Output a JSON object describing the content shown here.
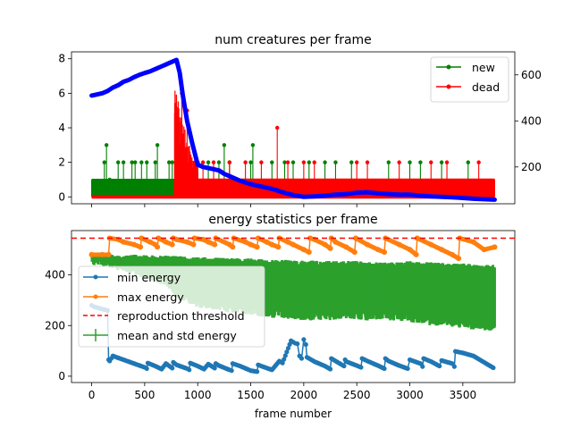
{
  "chart_data": [
    {
      "type": "line",
      "title": "num creatures per frame",
      "xlabel": "",
      "ylabel": "",
      "xlim": [
        -190,
        3990
      ],
      "ylim": [
        -0.4,
        8.4
      ],
      "y2lim": [
        40,
        700
      ],
      "yticks": [
        0,
        2,
        4,
        6,
        8
      ],
      "y2ticks": [
        200,
        400,
        600
      ],
      "xticks": [
        0,
        500,
        1000,
        1500,
        2000,
        2500,
        3000,
        3500
      ],
      "grid": false,
      "legend": "top-right",
      "series": [
        {
          "name": "new",
          "color": "#008000",
          "marker": "dot",
          "stem_base": 0,
          "background_level": 1,
          "background_ranges": [
            [
              0,
              820
            ],
            [
              900,
              3800
            ]
          ],
          "spikes": [
            {
              "x": 140,
              "y": 3
            },
            {
              "x": 120,
              "y": 2
            },
            {
              "x": 170,
              "y": 1
            },
            {
              "x": 250,
              "y": 2
            },
            {
              "x": 300,
              "y": 2
            },
            {
              "x": 380,
              "y": 2
            },
            {
              "x": 410,
              "y": 2
            },
            {
              "x": 470,
              "y": 2
            },
            {
              "x": 520,
              "y": 2
            },
            {
              "x": 600,
              "y": 2
            },
            {
              "x": 620,
              "y": 3
            },
            {
              "x": 730,
              "y": 2
            },
            {
              "x": 760,
              "y": 2
            },
            {
              "x": 1000,
              "y": 2
            },
            {
              "x": 1100,
              "y": 2
            },
            {
              "x": 1200,
              "y": 2
            },
            {
              "x": 1250,
              "y": 3
            },
            {
              "x": 1300,
              "y": 2
            },
            {
              "x": 1500,
              "y": 2
            },
            {
              "x": 1520,
              "y": 3
            },
            {
              "x": 1700,
              "y": 2
            },
            {
              "x": 1820,
              "y": 2
            },
            {
              "x": 1900,
              "y": 2
            },
            {
              "x": 2050,
              "y": 2
            },
            {
              "x": 2200,
              "y": 2
            },
            {
              "x": 2300,
              "y": 2
            },
            {
              "x": 2450,
              "y": 2
            },
            {
              "x": 2800,
              "y": 2
            },
            {
              "x": 3000,
              "y": 2
            },
            {
              "x": 3100,
              "y": 2
            },
            {
              "x": 3300,
              "y": 2
            },
            {
              "x": 3550,
              "y": 2
            }
          ]
        },
        {
          "name": "dead",
          "color": "#ff0000",
          "marker": "dot",
          "stem_base": 0,
          "background_level": 1,
          "background_ranges": [
            [
              800,
              3800
            ]
          ],
          "burst": {
            "x_start": 780,
            "x_end": 1000,
            "peak": 6.5
          },
          "spikes": [
            {
              "x": 850,
              "y": 6
            },
            {
              "x": 900,
              "y": 5
            },
            {
              "x": 1000,
              "y": 2
            },
            {
              "x": 1050,
              "y": 2
            },
            {
              "x": 1150,
              "y": 2
            },
            {
              "x": 1300,
              "y": 2
            },
            {
              "x": 1450,
              "y": 2
            },
            {
              "x": 1600,
              "y": 2
            },
            {
              "x": 1750,
              "y": 4
            },
            {
              "x": 1850,
              "y": 2
            },
            {
              "x": 2000,
              "y": 2
            },
            {
              "x": 2100,
              "y": 2
            },
            {
              "x": 2500,
              "y": 2
            },
            {
              "x": 2600,
              "y": 2
            },
            {
              "x": 2900,
              "y": 2
            },
            {
              "x": 3200,
              "y": 2
            },
            {
              "x": 3350,
              "y": 2
            },
            {
              "x": 3650,
              "y": 2
            }
          ]
        },
        {
          "name": "",
          "axis": "right",
          "color": "#0000ff",
          "x": [
            0,
            50,
            100,
            150,
            200,
            250,
            300,
            350,
            400,
            450,
            500,
            550,
            600,
            650,
            700,
            750,
            800,
            830,
            860,
            900,
            950,
            1000,
            1050,
            1100,
            1150,
            1200,
            1250,
            1300,
            1350,
            1400,
            1500,
            1600,
            1700,
            1800,
            1900,
            2000,
            2100,
            2200,
            2300,
            2400,
            2500,
            2600,
            2700,
            2800,
            2900,
            3000,
            3100,
            3200,
            3300,
            3400,
            3500,
            3600,
            3700,
            3800
          ],
          "y": [
            510,
            515,
            520,
            530,
            545,
            555,
            570,
            578,
            590,
            600,
            608,
            615,
            625,
            635,
            645,
            655,
            665,
            610,
            510,
            400,
            300,
            210,
            200,
            195,
            190,
            185,
            170,
            160,
            150,
            140,
            125,
            115,
            105,
            90,
            78,
            70,
            72,
            75,
            80,
            82,
            88,
            90,
            85,
            82,
            80,
            80,
            75,
            72,
            70,
            68,
            65,
            62,
            60,
            58
          ]
        }
      ]
    },
    {
      "type": "line",
      "title": "energy statistics per frame",
      "xlabel": "frame number",
      "ylabel": "",
      "xlim": [
        -190,
        3990
      ],
      "ylim": [
        -25,
        575
      ],
      "yticks": [
        0,
        200,
        400
      ],
      "xticks": [
        0,
        500,
        1000,
        1500,
        2000,
        2500,
        3000,
        3500
      ],
      "grid": false,
      "legend": "center-left",
      "series": [
        {
          "name": "min energy",
          "color": "#1f77b4",
          "marker": "dot",
          "x": [
            0,
            20,
            60,
            100,
            130,
            150,
            160,
            170,
            200,
            300,
            400,
            500,
            520,
            530,
            600,
            660,
            700,
            760,
            770,
            800,
            900,
            920,
            930,
            1000,
            1060,
            1100,
            1160,
            1170,
            1200,
            1300,
            1320,
            1330,
            1400,
            1500,
            1560,
            1570,
            1600,
            1700,
            1760,
            1770,
            1800,
            1880,
            1900,
            1920,
            1940,
            1960,
            1980,
            2000,
            2020,
            2030,
            2100,
            2200,
            2250,
            2260,
            2300,
            2380,
            2390,
            2400,
            2500,
            2540,
            2550,
            2600,
            2700,
            2760,
            2770,
            2800,
            2900,
            2980,
            3000,
            3100,
            3120,
            3130,
            3200,
            3280,
            3300,
            3400,
            3420,
            3430,
            3500,
            3600,
            3700,
            3800
          ],
          "y": [
            280,
            275,
            270,
            265,
            262,
            260,
            65,
            60,
            80,
            65,
            50,
            35,
            30,
            52,
            40,
            28,
            50,
            32,
            55,
            45,
            30,
            25,
            52,
            40,
            28,
            48,
            32,
            50,
            42,
            25,
            22,
            50,
            40,
            22,
            18,
            45,
            40,
            25,
            55,
            60,
            52,
            140,
            135,
            130,
            128,
            80,
            70,
            145,
            125,
            75,
            58,
            40,
            28,
            70,
            60,
            40,
            65,
            58,
            42,
            35,
            70,
            60,
            42,
            30,
            70,
            60,
            42,
            30,
            65,
            50,
            38,
            70,
            58,
            40,
            62,
            50,
            38,
            98,
            92,
            80,
            55,
            30
          ]
        },
        {
          "name": "max energy",
          "color": "#ff7f0e",
          "marker": "dot",
          "x": [
            0,
            100,
            160,
            170,
            250,
            300,
            400,
            460,
            470,
            550,
            600,
            620,
            630,
            700,
            760,
            770,
            800,
            900,
            960,
            970,
            1050,
            1100,
            1160,
            1170,
            1300,
            1330,
            1340,
            1450,
            1500,
            1560,
            1570,
            1650,
            1700,
            1760,
            1770,
            1850,
            1900,
            2000,
            2050,
            2060,
            2100,
            2200,
            2250,
            2260,
            2300,
            2400,
            2480,
            2490,
            2600,
            2700,
            2760,
            2770,
            2900,
            3000,
            3060,
            3070,
            3200,
            3300,
            3400,
            3460,
            3470,
            3600,
            3700,
            3800
          ],
          "y": [
            480,
            480,
            480,
            545,
            540,
            530,
            520,
            510,
            545,
            530,
            520,
            510,
            545,
            530,
            520,
            545,
            540,
            530,
            520,
            545,
            540,
            530,
            520,
            545,
            520,
            510,
            545,
            530,
            520,
            510,
            545,
            530,
            520,
            510,
            545,
            530,
            520,
            500,
            490,
            545,
            540,
            520,
            505,
            545,
            530,
            510,
            490,
            545,
            520,
            500,
            490,
            545,
            520,
            500,
            480,
            545,
            520,
            500,
            480,
            465,
            545,
            530,
            500,
            510
          ]
        },
        {
          "name": "reproduction threshold",
          "color": "#ff0000",
          "dash": "dashed",
          "y": 545
        },
        {
          "name": "mean and std energy",
          "color": "#2ca02c",
          "x": [
            0,
            100,
            200,
            300,
            400,
            500,
            600,
            700,
            800,
            900,
            1000,
            1100,
            1200,
            1300,
            1400,
            1500,
            1600,
            1700,
            1800,
            1900,
            2000,
            2100,
            2200,
            2300,
            2400,
            2500,
            2600,
            2700,
            2800,
            2900,
            3000,
            3100,
            3200,
            3300,
            3400,
            3500,
            3600,
            3700,
            3800
          ],
          "upper": [
            480,
            475,
            470,
            470,
            470,
            468,
            468,
            466,
            465,
            462,
            460,
            460,
            458,
            456,
            455,
            455,
            452,
            450,
            450,
            448,
            448,
            446,
            445,
            445,
            445,
            445,
            440,
            440,
            440,
            440,
            445,
            440,
            440,
            438,
            435,
            435,
            432,
            430,
            430
          ],
          "lower": [
            460,
            455,
            445,
            430,
            420,
            405,
            390,
            375,
            330,
            310,
            290,
            285,
            280,
            270,
            270,
            260,
            255,
            250,
            245,
            245,
            240,
            240,
            240,
            240,
            245,
            245,
            240,
            240,
            240,
            240,
            230,
            230,
            220,
            220,
            215,
            210,
            200,
            200,
            200
          ]
        }
      ]
    }
  ]
}
